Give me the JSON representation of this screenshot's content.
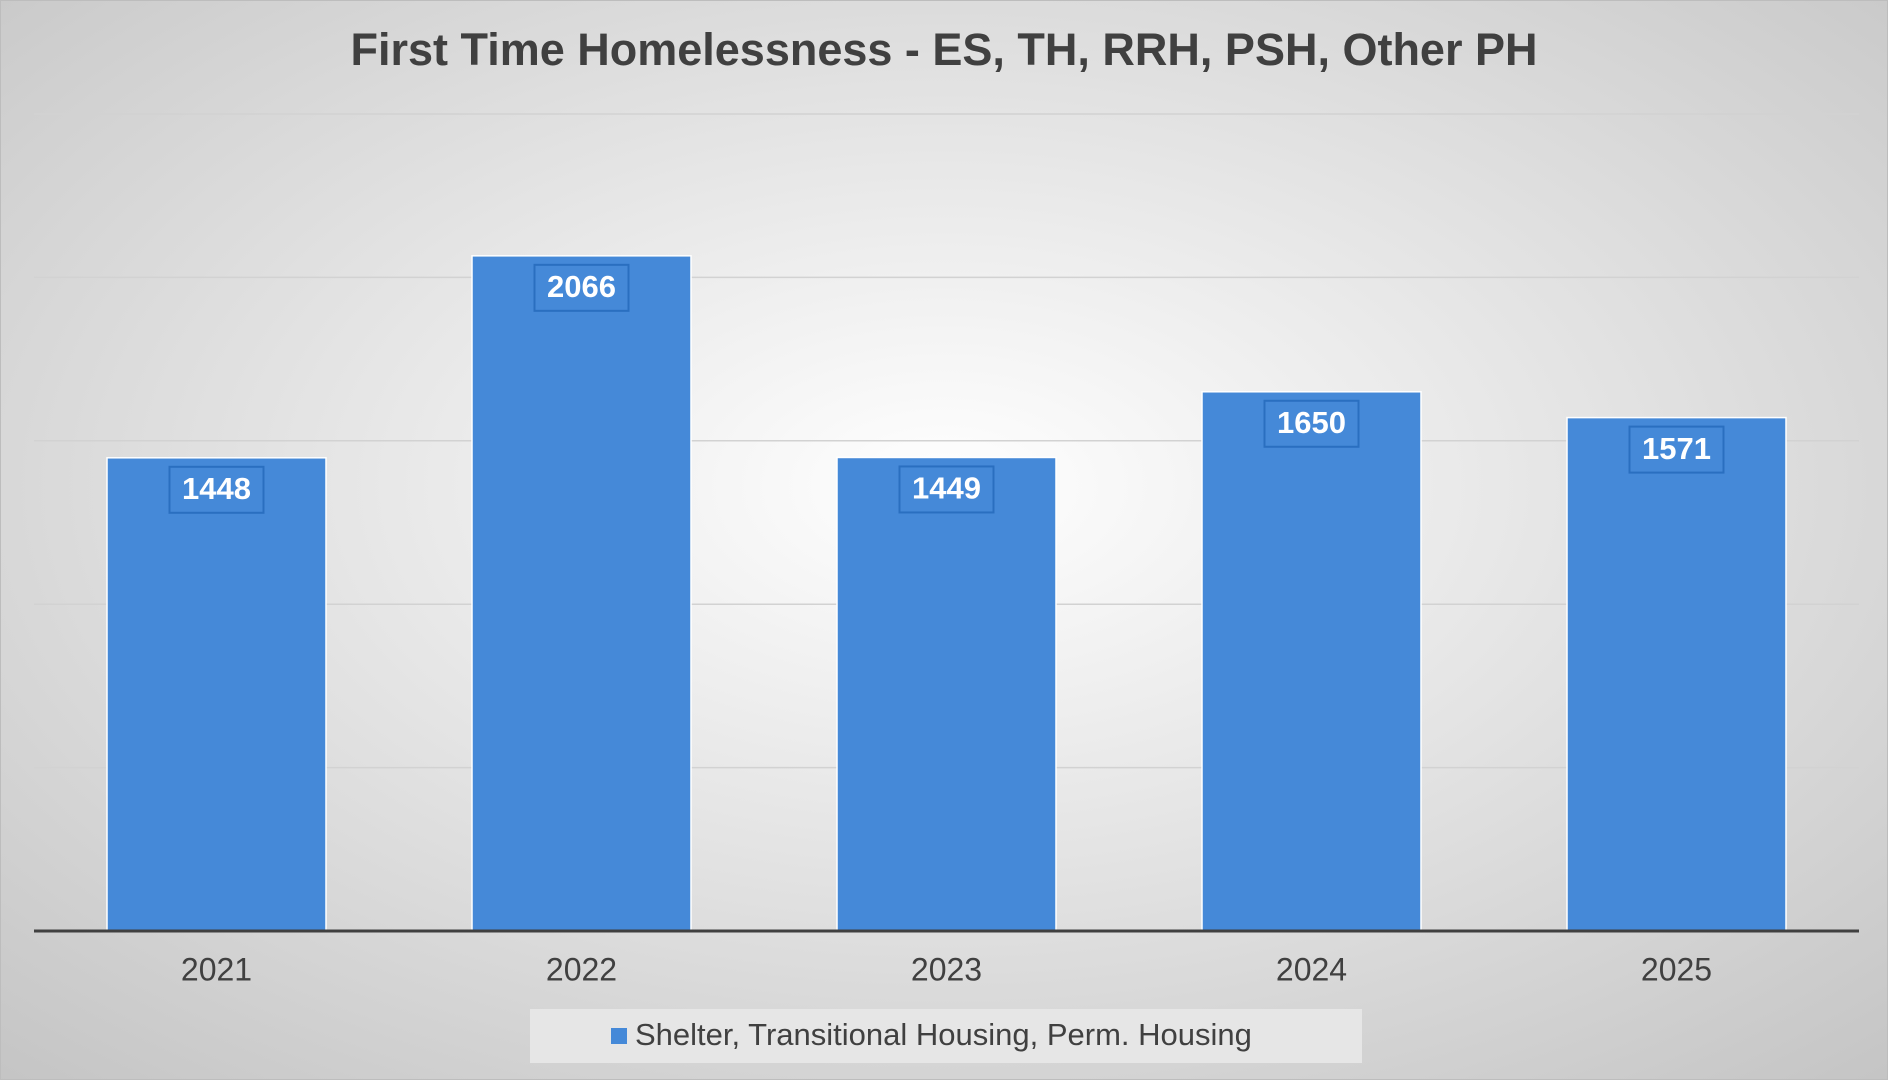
{
  "chart_data": {
    "type": "bar",
    "title": "First Time Homelessness - ES, TH, RRH, PSH, Other PH",
    "categories": [
      "2021",
      "2022",
      "2023",
      "2024",
      "2025"
    ],
    "series": [
      {
        "name": "Shelter, Transitional Housing, Perm. Housing",
        "color": "#4589d8",
        "values": [
          1448,
          2066,
          1449,
          1650,
          1571
        ]
      }
    ],
    "ylim": [
      0,
      2500
    ],
    "yticks": [
      0,
      500,
      1000,
      1500,
      2000,
      2500
    ],
    "grid": true,
    "legend": "bottom"
  }
}
